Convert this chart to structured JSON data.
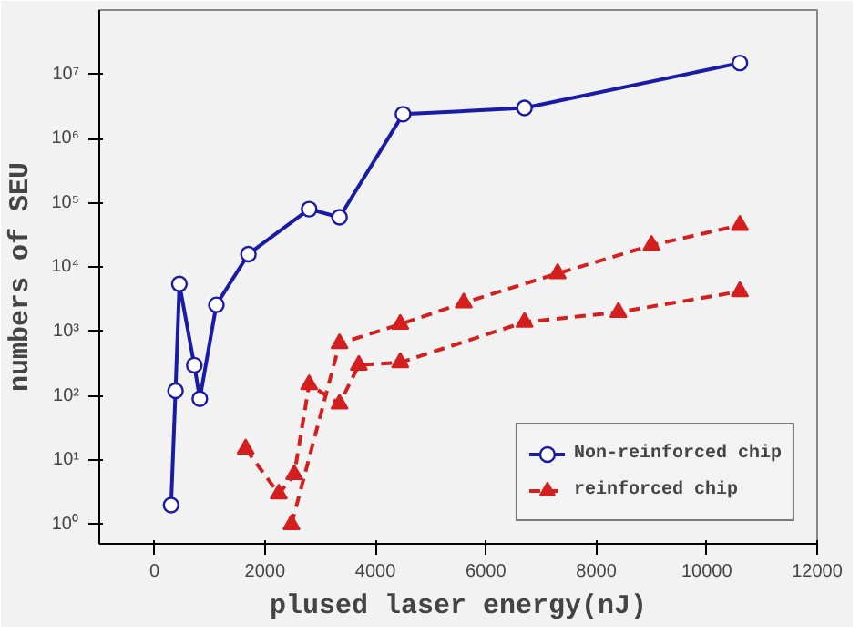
{
  "chart_data": {
    "type": "line",
    "xlabel": "plused laser energy(nJ)",
    "ylabel": "numbers of SEU",
    "log": "y",
    "grid": false,
    "legend": "bottom right",
    "xlim": [
      -1000,
      12000
    ],
    "xticks": [
      0,
      2000,
      4000,
      6000,
      8000,
      10000,
      12000
    ],
    "ylim": [
      0.5,
      100000000
    ],
    "yticks": [
      {
        "value": 1,
        "label": "10⁰"
      },
      {
        "value": 10,
        "label": "10¹"
      },
      {
        "value": 100,
        "label": "10²"
      },
      {
        "value": 1000,
        "label": "10³"
      },
      {
        "value": 10000,
        "label": "10⁴"
      },
      {
        "value": 100000,
        "label": "10⁵"
      },
      {
        "value": 1000000,
        "label": "10⁶"
      },
      {
        "value": 10000000,
        "label": "10⁷"
      }
    ],
    "series": [
      {
        "name": "Non-reinforced chip",
        "color": "#1a1aa8",
        "marker": "circle",
        "line_style": "solid",
        "x": [
          300,
          380,
          450,
          720,
          820,
          1120,
          1700,
          2800,
          3350,
          4500,
          6700,
          10600
        ],
        "values": [
          2,
          120,
          5500,
          300,
          90,
          2600,
          16000,
          80000,
          60000,
          2400000,
          3000000,
          15000000
        ]
      },
      {
        "name": "reinforced chip",
        "color": "#d41f1f",
        "marker": "triangle",
        "line_style": "dashed",
        "x": [
          1650,
          2250,
          2530,
          2800,
          3350,
          3700,
          4450,
          6700,
          8400,
          10600
        ],
        "values": [
          15,
          3,
          6,
          150,
          75,
          300,
          330,
          1400,
          2000,
          4200
        ]
      },
      {
        "color": "#d41f1f",
        "marker": "triangle",
        "line_style": "dashed",
        "x": [
          2480,
          3350,
          4450,
          5600,
          7300,
          9000,
          10600
        ],
        "values": [
          1,
          650,
          1300,
          2800,
          8000,
          22000,
          45000
        ]
      }
    ]
  }
}
